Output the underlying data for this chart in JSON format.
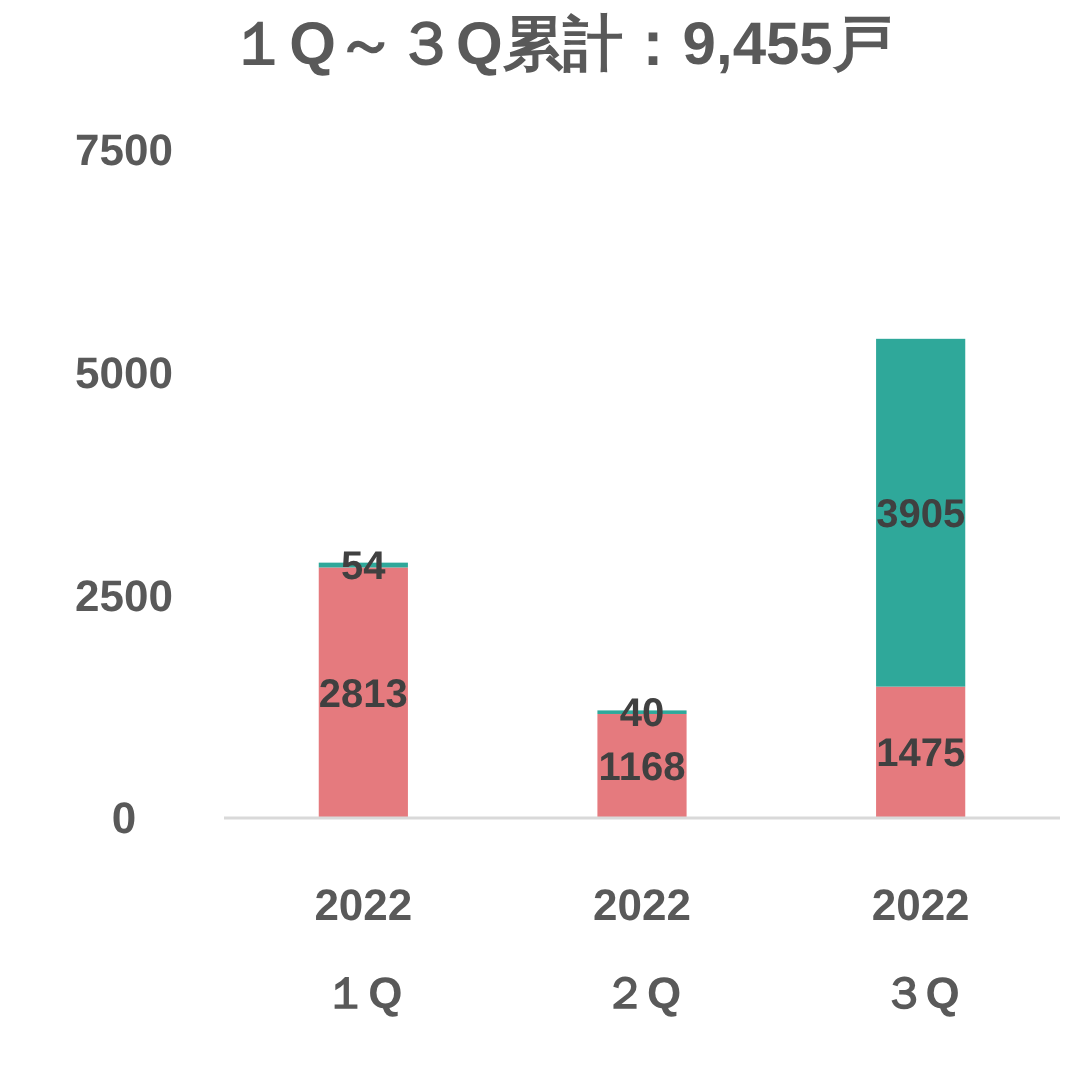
{
  "chart_data": {
    "type": "bar",
    "title": "１Q～３Q累計：9,455戸",
    "stacked": true,
    "data_labels": true,
    "categories": [
      "2022\n１Q",
      "2022\n２Q",
      "2022\n３Q"
    ],
    "series": [
      {
        "color": "#e57a7e",
        "values": [
          2813,
          1168,
          1475
        ]
      },
      {
        "color": "#2fa89a",
        "values": [
          54,
          40,
          3905
        ]
      }
    ],
    "ylim": [
      0,
      7500
    ],
    "yticks": [
      0,
      2500,
      5000,
      7500
    ],
    "grid": false
  }
}
